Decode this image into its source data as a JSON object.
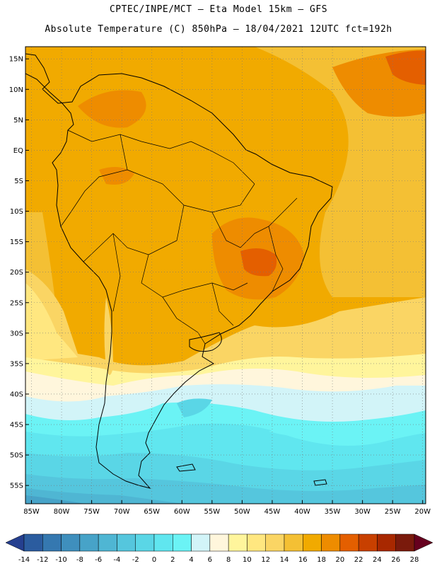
{
  "header": {
    "line1": "CPTEC/INPE/MCT –  Eta Model 15km – GFS",
    "line2": "Absolute Temperature (C) 850hPa – 18/04/2021 12UTC fct=192h"
  },
  "map": {
    "lat_labels": [
      "15N",
      "10N",
      "5N",
      "EQ",
      "5S",
      "10S",
      "15S",
      "20S",
      "25S",
      "30S",
      "35S",
      "40S",
      "45S",
      "50S",
      "55S"
    ],
    "lat_values": [
      15,
      10,
      5,
      0,
      -5,
      -10,
      -15,
      -20,
      -25,
      -30,
      -35,
      -40,
      -45,
      -50,
      -55
    ],
    "lon_labels": [
      "85W",
      "80W",
      "75W",
      "70W",
      "65W",
      "60W",
      "55W",
      "50W",
      "45W",
      "40W",
      "35W",
      "30W",
      "25W",
      "20W"
    ],
    "lon_values": [
      -85,
      -80,
      -75,
      -70,
      -65,
      -60,
      -55,
      -50,
      -45,
      -40,
      -35,
      -30,
      -25,
      -20
    ],
    "lat_range": [
      -58,
      17
    ],
    "lon_range": [
      -86,
      -19.5
    ],
    "grid": "dotted"
  },
  "colorbar": {
    "labels": [
      "-14",
      "-12",
      "-10",
      "-8",
      "-6",
      "-4",
      "-2",
      "0",
      "2",
      "4",
      "6",
      "8",
      "10",
      "12",
      "14",
      "16",
      "18",
      "20",
      "22",
      "24",
      "26",
      "28"
    ],
    "colors": [
      "#253f8f",
      "#2b5c9f",
      "#3578b0",
      "#3f8fbd",
      "#47a3c8",
      "#4fb6d3",
      "#55c6dd",
      "#5ad6e6",
      "#60e6ef",
      "#6bf3f5",
      "#d2f4f8",
      "#fff6dc",
      "#fff59c",
      "#ffe780",
      "#fad564",
      "#f4c034",
      "#f1aa00",
      "#ee8c00",
      "#e45f00",
      "#c84000",
      "#a82800",
      "#7a1a0c",
      "#66001e"
    ]
  }
}
